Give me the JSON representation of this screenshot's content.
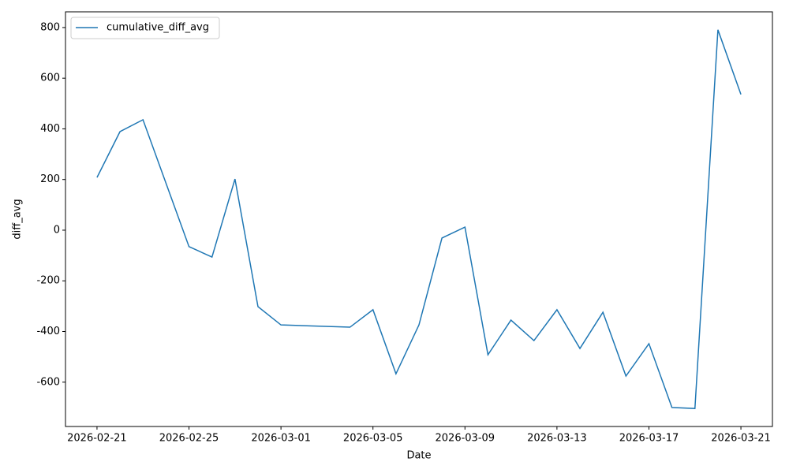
{
  "chart_data": {
    "type": "line",
    "x_label": "Date",
    "y_label": "diff_avg",
    "x": [
      "2026-02-21",
      "2026-02-22",
      "2026-02-23",
      "2026-02-25",
      "2026-02-26",
      "2026-02-27",
      "2026-02-28",
      "2026-03-01",
      "2026-03-04",
      "2026-03-05",
      "2026-03-06",
      "2026-03-07",
      "2026-03-08",
      "2026-03-09",
      "2026-03-10",
      "2026-03-11",
      "2026-03-12",
      "2026-03-13",
      "2026-03-14",
      "2026-03-15",
      "2026-03-16",
      "2026-03-17",
      "2026-03-18",
      "2026-03-19",
      "2026-03-20",
      "2026-03-21"
    ],
    "series": [
      {
        "name": "cumulative_diff_avg",
        "color": "#1f77b4",
        "values": [
          208,
          389,
          436,
          -65,
          -106,
          202,
          -302,
          -374,
          -383,
          -314,
          -567,
          -374,
          -31,
          12,
          -492,
          -355,
          -436,
          -314,
          -467,
          -324,
          -576,
          -448,
          -700,
          -704,
          791,
          536
        ]
      }
    ],
    "xlim": [
      "2026-02-19T15:07",
      "2026-03-22T08:53"
    ],
    "xticks": [
      "2026-02-21",
      "2026-02-25",
      "2026-03-01",
      "2026-03-05",
      "2026-03-09",
      "2026-03-13",
      "2026-03-17",
      "2026-03-21"
    ],
    "ylim": [
      -775,
      862
    ],
    "yticks": [
      -600,
      -400,
      -200,
      0,
      200,
      400,
      600,
      800
    ],
    "legend": "upper left"
  }
}
